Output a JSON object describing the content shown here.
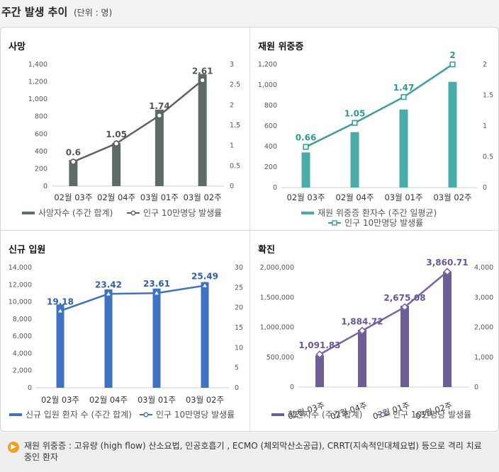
{
  "header": {
    "title": "주간 발생 추이",
    "unit": "(단위 : 명)"
  },
  "footer": {
    "note": "재원 위중증 : 고유량 (high flow) 산소요법, 인공호흡기 , ECMO (체외막산소공급), CRRT(지속적인대체요법) 등으로 격리 치료 중인 환자"
  },
  "chart_data": [
    {
      "type": "bar",
      "title": "사망",
      "categories": [
        "02월 03주",
        "02월 04주",
        "03월 01주",
        "03월 02주"
      ],
      "series": [
        {
          "name": "사망자수 (주간 합계)",
          "kind": "bar",
          "axis": "left",
          "values": [
            300,
            495,
            880,
            1290
          ]
        },
        {
          "name": "인구 10만명당 발생률",
          "kind": "line",
          "axis": "right",
          "values": [
            0.6,
            1.05,
            1.74,
            2.61
          ],
          "labels": [
            "0.6",
            "1.05",
            "1.74",
            "2.61"
          ]
        }
      ],
      "left_axis": {
        "ticks": [
          "0",
          "200",
          "400",
          "600",
          "800",
          "1,000",
          "1,200",
          "1,400"
        ],
        "ylim": [
          0,
          1400
        ]
      },
      "right_axis": {
        "ticks": [
          "0",
          "0.5",
          "1",
          "1.5",
          "2",
          "2.5",
          "3"
        ],
        "ylim": [
          0,
          3
        ]
      },
      "colors": {
        "bar": "#5f6b68",
        "line": "#606060",
        "label": "#555555"
      },
      "marker": "circle"
    },
    {
      "type": "bar",
      "title": "재원 위중증",
      "categories": [
        "02월 03주",
        "02월 04주",
        "03월 01주",
        "03월 02주"
      ],
      "series": [
        {
          "name": "재원 위중증 환자수 (주간 일평균)",
          "kind": "bar",
          "axis": "left",
          "values": [
            342,
            540,
            760,
            1030
          ]
        },
        {
          "name": "인구 10만명당 발생률",
          "kind": "line",
          "axis": "right",
          "values": [
            0.66,
            1.05,
            1.47,
            2
          ],
          "labels": [
            "0.66",
            "1.05",
            "1.47",
            "2"
          ]
        }
      ],
      "left_axis": {
        "ticks": [
          "0",
          "200",
          "400",
          "600",
          "800",
          "1,000",
          "1,200"
        ],
        "ylim": [
          0,
          1200
        ]
      },
      "right_axis": {
        "ticks": [
          "0",
          "0.5",
          "1",
          "1.5",
          "2"
        ],
        "ylim": [
          0,
          2
        ]
      },
      "colors": {
        "bar": "#4aaca8",
        "line": "#3a9e9a",
        "label": "#2d9a95"
      },
      "marker": "square"
    },
    {
      "type": "bar",
      "title": "신규 입원",
      "categories": [
        "02월 03주",
        "02월 04주",
        "03월 01주",
        "03월 02주"
      ],
      "series": [
        {
          "name": "신규 입원 환자 수 (주간 합계)",
          "kind": "bar",
          "axis": "left",
          "values": [
            9700,
            11450,
            11550,
            12300
          ]
        },
        {
          "name": "인구 10만명당 발생률",
          "kind": "line",
          "axis": "right",
          "values": [
            19.18,
            23.42,
            23.61,
            25.49
          ],
          "labels": [
            "19.18",
            "23.42",
            "23.61",
            "25.49"
          ]
        }
      ],
      "left_axis": {
        "ticks": [
          "0",
          "2,000",
          "4,000",
          "6,000",
          "8,000",
          "10,000",
          "12,000",
          "14,000"
        ],
        "ylim": [
          0,
          14000
        ]
      },
      "right_axis": {
        "ticks": [
          "0",
          "5",
          "10",
          "15",
          "20",
          "25",
          "30"
        ],
        "ylim": [
          0,
          30
        ]
      },
      "colors": {
        "bar": "#3d72c4",
        "line": "#3d72c4",
        "label": "#2f5fae"
      },
      "marker": "triangle"
    },
    {
      "type": "bar",
      "title": "확진",
      "categories": [
        "02월 03주",
        "02월 04주",
        "03월 01주",
        "03월 02주"
      ],
      "series": [
        {
          "name": "확진자수 (주간 합계)",
          "kind": "bar",
          "axis": "left",
          "values": [
            530000,
            960000,
            1360000,
            1930000
          ]
        },
        {
          "name": "인구 10만명당 발생률",
          "kind": "line",
          "axis": "right",
          "values": [
            1091.83,
            1884.72,
            2675.08,
            3860.71
          ],
          "labels": [
            "1,091.83",
            "1,884.72",
            "2,675.08",
            "3,860.71"
          ]
        }
      ],
      "left_axis": {
        "ticks": [
          "0",
          "500,000",
          "1,000,000",
          "1,500,000",
          "2,000,000"
        ],
        "ylim": [
          0,
          2000000
        ]
      },
      "right_axis": {
        "ticks": [
          "0",
          "1,000",
          "2,000",
          "3,000",
          "4,000"
        ],
        "ylim": [
          0,
          4000
        ]
      },
      "colors": {
        "bar": "#6d5e96",
        "line": "#7a64a8",
        "label": "#6a559a"
      },
      "marker": "diamond",
      "rotated_x": true
    }
  ]
}
